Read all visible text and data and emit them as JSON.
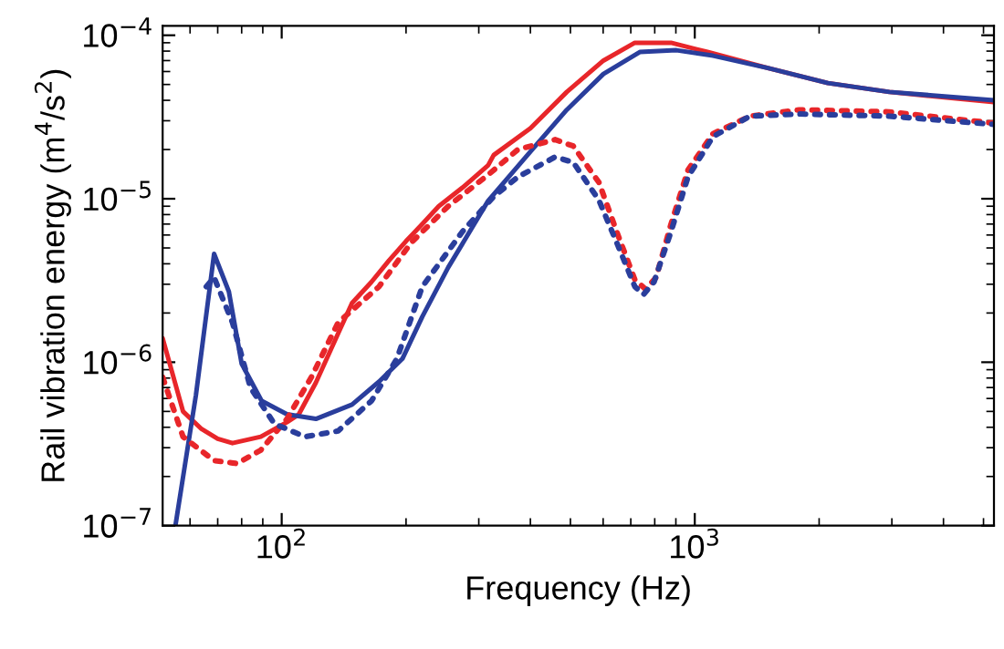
{
  "chart_data": {
    "type": "line",
    "xlabel": "Frequency (Hz)",
    "ylabel": "Rail vibration energy (m$^{4}$/s$^{2}$)",
    "log": "xy",
    "grid": false,
    "legend": false,
    "xlim": [
      51.5,
      5300
    ],
    "ylim": [
      1e-07,
      0.000114
    ],
    "xticks": [
      {
        "value": 100,
        "label": "10$^{2}$"
      },
      {
        "value": 1000,
        "label": "10$^{3}$"
      }
    ],
    "yticks": [
      {
        "value": 1e-07,
        "label": "10$^{−7}$"
      },
      {
        "value": 1e-06,
        "label": "10$^{−6}$"
      },
      {
        "value": 1e-05,
        "label": "10$^{−5}$"
      },
      {
        "value": 0.0001,
        "label": "10$^{−4}$"
      }
    ],
    "series": [
      {
        "color": "#e8262a",
        "line_style": "solid",
        "x": [
          51.5,
          57.7,
          64,
          70,
          76,
          89,
          103,
          110,
          121,
          137,
          148,
          165,
          182,
          200,
          219,
          240,
          274,
          316,
          326,
          400,
          490,
          601,
          716,
          876,
          1073,
          1503,
          2100,
          2958,
          5300
        ],
        "values": [
          1.4e-06,
          5e-07,
          3.9e-07,
          3.4e-07,
          3.2e-07,
          3.5e-07,
          4.3e-07,
          4.8e-07,
          7.5e-07,
          1.5e-06,
          2.3e-06,
          3.1e-06,
          4.2e-06,
          5.5e-06,
          7e-06,
          9e-06,
          1.17e-05,
          1.6e-05,
          1.85e-05,
          2.7e-05,
          4.5e-05,
          7e-05,
          9e-05,
          9e-05,
          7.9e-05,
          6.3e-05,
          5.1e-05,
          4.5e-05,
          3.9e-05
        ]
      },
      {
        "color": "#2a3e9c",
        "line_style": "solid",
        "x": [
          55.3,
          62,
          68.6,
          74.5,
          80,
          89.4,
          103,
          121,
          148,
          172,
          196,
          219,
          253,
          316,
          400,
          490,
          601,
          736,
          903,
          1107,
          1503,
          2100,
          2958,
          5300
        ],
        "values": [
          1e-07,
          6.3e-07,
          4.6e-06,
          2.7e-06,
          9.8e-07,
          5.8e-07,
          4.8e-07,
          4.5e-07,
          5.5e-07,
          7.6e-07,
          1.05e-06,
          1.9e-06,
          3.8e-06,
          9.7e-06,
          1.94e-05,
          3.5e-05,
          5.8e-05,
          7.9e-05,
          8.1e-05,
          7.5e-05,
          6.3e-05,
          5.1e-05,
          4.5e-05,
          4e-05
        ]
      },
      {
        "color": "#e8262a",
        "line_style": "dotted",
        "x": [
          51.5,
          57.7,
          68.6,
          78,
          89,
          103,
          118,
          137,
          172,
          206,
          253,
          316,
          373,
          459,
          508,
          586,
          647,
          716,
          760,
          806,
          876,
          963,
          1107,
          1360,
          1790,
          2958,
          5300
        ],
        "values": [
          8.1e-07,
          3.5e-07,
          2.5e-07,
          2.4e-07,
          2.9e-07,
          4.5e-07,
          8.1e-07,
          1.75e-06,
          2.9e-06,
          5.4e-06,
          9e-06,
          1.4e-05,
          2e-05,
          2.3e-05,
          2.1e-05,
          1.26e-05,
          6.3e-06,
          3.2e-06,
          2.8e-06,
          3.3e-06,
          7e-06,
          1.5e-05,
          2.5e-05,
          3.2e-05,
          3.5e-05,
          3.4e-05,
          2.9e-05
        ]
      },
      {
        "color": "#2a3e9c",
        "line_style": "dotted",
        "x": [
          65.7,
          68.6,
          76,
          84,
          96,
          114,
          137,
          165,
          190,
          219,
          274,
          326,
          373,
          459,
          508,
          586,
          647,
          716,
          752,
          797,
          876,
          963,
          1107,
          1360,
          1790,
          2958,
          5300
        ],
        "values": [
          2.9e-06,
          3.3e-06,
          1.75e-06,
          7e-07,
          4.2e-07,
          3.5e-07,
          3.8e-07,
          5.8e-07,
          1.05e-06,
          2.9e-06,
          6.3e-06,
          1.03e-05,
          1.36e-05,
          1.8e-05,
          1.67e-05,
          9.8e-06,
          5.4e-06,
          2.9e-06,
          2.6e-06,
          3.1e-06,
          6.3e-06,
          1.36e-05,
          2.4e-05,
          3.2e-05,
          3.3e-05,
          3.2e-05,
          2.85e-05
        ]
      }
    ]
  }
}
